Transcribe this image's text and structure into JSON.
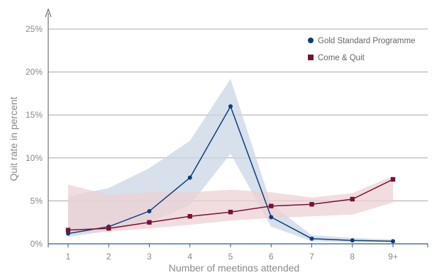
{
  "chart_data": {
    "type": "line",
    "xlabel": "Number of meetings attended",
    "ylabel": "Quit rate in percent",
    "categories": [
      "1",
      "2",
      "3",
      "4",
      "5",
      "6",
      "7",
      "8",
      "9+"
    ],
    "y_tick_labels": [
      "0%",
      "5%",
      "10%",
      "15%",
      "20%",
      "25%"
    ],
    "ylim": [
      0,
      25
    ],
    "grid": "horizontal",
    "legend_position": "top-right",
    "series": [
      {
        "name": "Gold Standard Programme",
        "marker": "circle",
        "color": "#0d3d7a",
        "band_color": "#c9d6e4",
        "values": [
          1.2,
          2.0,
          3.8,
          7.7,
          16.0,
          3.1,
          0.6,
          0.4,
          0.3
        ],
        "ci_lower": [
          0.8,
          1.5,
          2.5,
          4.5,
          10.5,
          2.0,
          0.3,
          0.2,
          0.2
        ],
        "ci_upper": [
          5.5,
          6.5,
          8.8,
          12.0,
          19.2,
          4.6,
          1.0,
          0.7,
          0.5
        ]
      },
      {
        "name": "Come & Quit",
        "marker": "square",
        "color": "#7a1035",
        "band_color": "#ecd2d4",
        "values": [
          1.6,
          1.8,
          2.5,
          3.2,
          3.7,
          4.4,
          4.6,
          5.2,
          7.5
        ],
        "ci_lower": [
          1.2,
          1.4,
          1.8,
          2.2,
          2.7,
          3.0,
          3.2,
          3.4,
          4.8
        ],
        "ci_upper": [
          6.9,
          5.7,
          6.0,
          6.0,
          6.3,
          6.0,
          5.4,
          5.9,
          7.9
        ]
      }
    ]
  }
}
